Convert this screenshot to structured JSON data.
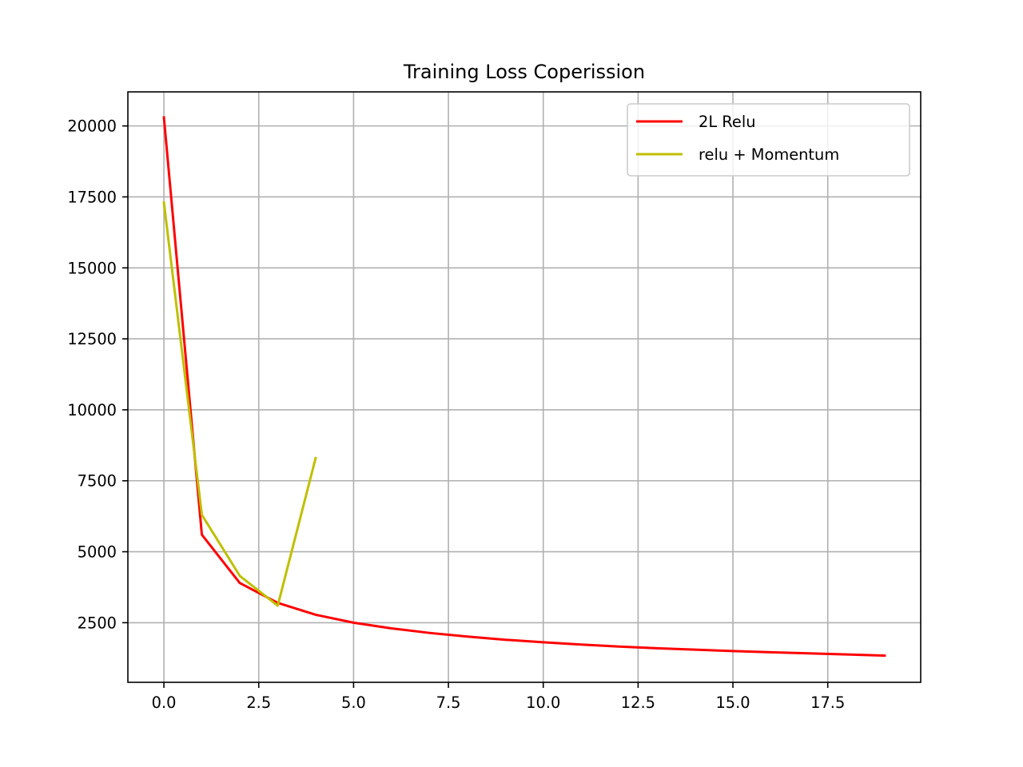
{
  "chart_data": {
    "type": "line",
    "title": "Training Loss Coperission",
    "xlabel": "",
    "ylabel": "",
    "xlim": [
      -0.95,
      19.95
    ],
    "ylim": [
      400,
      21200
    ],
    "xticks": [
      0.0,
      2.5,
      5.0,
      7.5,
      10.0,
      12.5,
      15.0,
      17.5
    ],
    "xtick_labels": [
      "0.0",
      "2.5",
      "5.0",
      "7.5",
      "10.0",
      "12.5",
      "15.0",
      "17.5"
    ],
    "yticks": [
      2500,
      5000,
      7500,
      10000,
      12500,
      15000,
      17500,
      20000
    ],
    "ytick_labels": [
      "2500",
      "5000",
      "7500",
      "10000",
      "12500",
      "15000",
      "17500",
      "20000"
    ],
    "grid": true,
    "legend_position": "top-right",
    "series": [
      {
        "name": "2L Relu",
        "color": "#ff0000",
        "x": [
          0,
          1,
          2,
          3,
          4,
          5,
          6,
          7,
          8,
          9,
          10,
          11,
          12,
          13,
          14,
          15,
          16,
          17,
          18,
          19
        ],
        "values": [
          20300,
          5600,
          3900,
          3200,
          2780,
          2500,
          2300,
          2140,
          2010,
          1900,
          1810,
          1730,
          1660,
          1600,
          1550,
          1500,
          1460,
          1420,
          1380,
          1340
        ]
      },
      {
        "name": "relu + Momentum",
        "color": "#bfbf00",
        "x": [
          0,
          1,
          2,
          3,
          4
        ],
        "values": [
          17300,
          6300,
          4150,
          3100,
          8300
        ]
      }
    ]
  }
}
